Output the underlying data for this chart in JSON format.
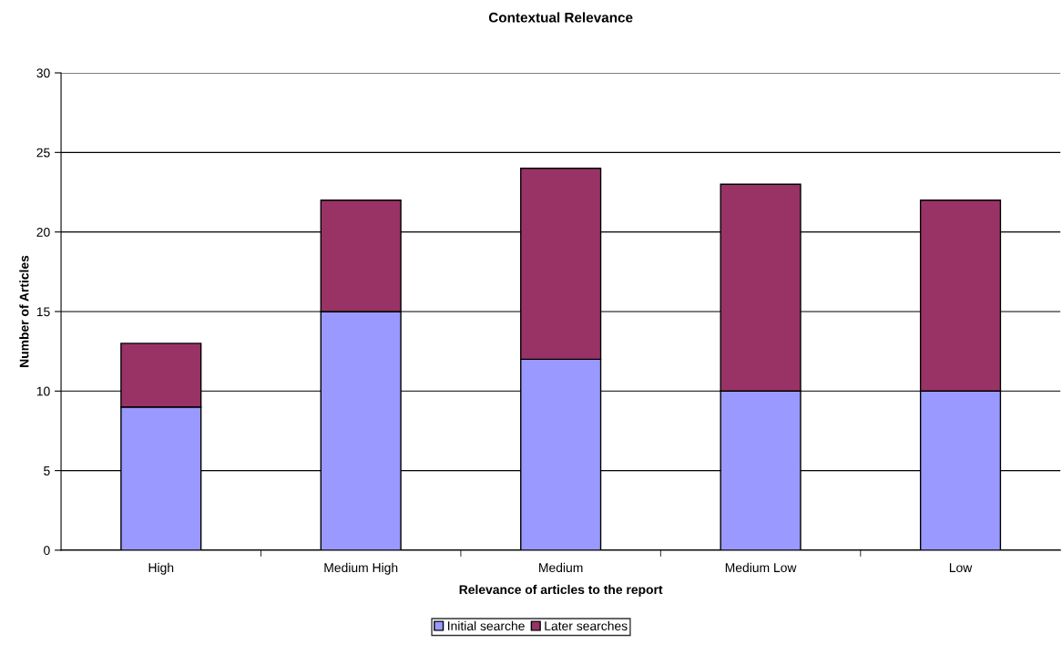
{
  "chart_data": {
    "type": "bar",
    "title": "Contextual Relevance",
    "xlabel": "Relevance of articles to the report",
    "ylabel": "Number of Articles",
    "categories": [
      "High",
      "Medium High",
      "Medium",
      "Medium Low",
      "Low"
    ],
    "series": [
      {
        "name": "Initial searche",
        "color": "#9999ff",
        "values": [
          9,
          15,
          12,
          10,
          10
        ]
      },
      {
        "name": "Later searches",
        "color": "#993366",
        "values": [
          4,
          7,
          12,
          13,
          12
        ]
      }
    ],
    "stacked": true,
    "ylim": [
      0,
      30
    ],
    "yticks": [
      0,
      5,
      10,
      15,
      20,
      25,
      30
    ],
    "grid": "y",
    "legend": "bottom"
  }
}
